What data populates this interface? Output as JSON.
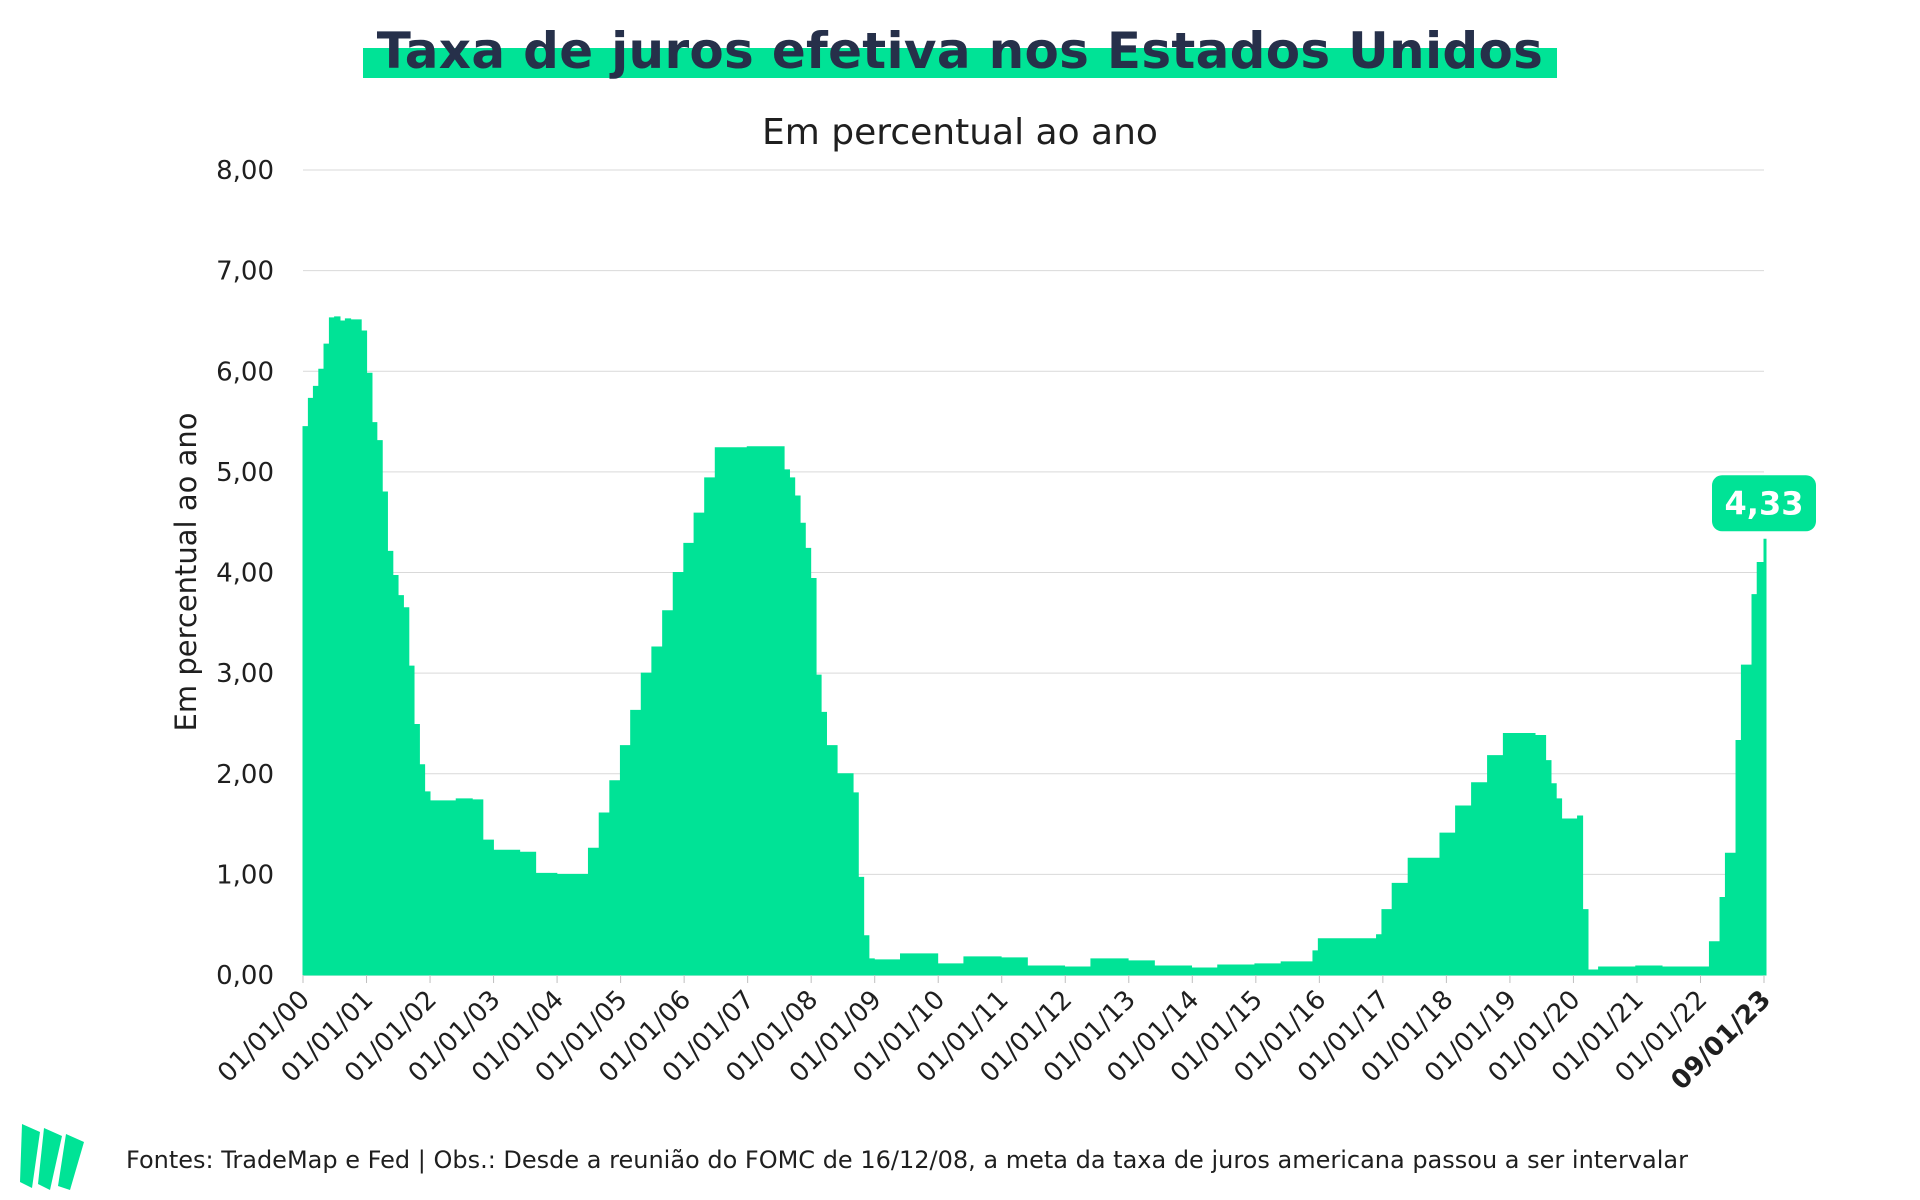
{
  "title": "Taxa de juros efetiva nos Estados Unidos",
  "subtitle": "Em percentual ao ano",
  "footer": "Fontes: TradeMap e Fed | Obs.: Desde a reunião do FOMC de 16/12/08, a meta da taxa de juros americana passou a ser intervalar",
  "colors": {
    "area": "#00e396",
    "title_text": "#26304a",
    "highlight": "#00e396",
    "grid": "#d9d9d9"
  },
  "chart_data": {
    "type": "area",
    "ylabel": "Em percentual ao ano",
    "ylim": [
      0,
      8
    ],
    "yticks": [
      "0,00",
      "1,00",
      "2,00",
      "3,00",
      "4,00",
      "5,00",
      "6,00",
      "7,00",
      "8,00"
    ],
    "xticks": [
      "01/01/00",
      "01/01/01",
      "01/01/02",
      "01/01/03",
      "01/01/04",
      "01/01/05",
      "01/01/06",
      "01/01/07",
      "01/01/08",
      "01/01/09",
      "01/01/10",
      "01/01/11",
      "01/01/12",
      "01/01/13",
      "01/01/14",
      "01/01/15",
      "01/01/16",
      "01/01/17",
      "01/01/18",
      "01/01/19",
      "01/01/20",
      "01/01/21",
      "01/01/22",
      "09/01/23"
    ],
    "grid": true,
    "callout": {
      "label": "4,33",
      "x": "2023-01-09",
      "y": 4.33
    },
    "series": [
      {
        "x": [
          "2000-01-01",
          "2000-02-01",
          "2000-03-01",
          "2000-04-01",
          "2000-05-01",
          "2000-06-01",
          "2000-07-01",
          "2000-08-01",
          "2000-09-01",
          "2000-10-01",
          "2000-11-01",
          "2000-12-01",
          "2001-01-01",
          "2001-02-01",
          "2001-03-01",
          "2001-04-01",
          "2001-05-01",
          "2001-06-01",
          "2001-07-01",
          "2001-08-01",
          "2001-09-01",
          "2001-10-01",
          "2001-11-01",
          "2001-12-01",
          "2002-01-01",
          "2002-03-01",
          "2002-06-01",
          "2002-09-01",
          "2002-11-01",
          "2003-01-01",
          "2003-06-01",
          "2003-09-01",
          "2004-01-01",
          "2004-05-01",
          "2004-07-01",
          "2004-09-01",
          "2004-11-01",
          "2005-01-01",
          "2005-03-01",
          "2005-05-01",
          "2005-07-01",
          "2005-09-01",
          "2005-11-01",
          "2006-01-01",
          "2006-03-01",
          "2006-05-01",
          "2006-07-01",
          "2007-01-01",
          "2007-06-01",
          "2007-08-01",
          "2007-09-01",
          "2007-10-01",
          "2007-11-01",
          "2007-12-01",
          "2008-01-01",
          "2008-02-01",
          "2008-03-01",
          "2008-04-01",
          "2008-06-01",
          "2008-09-01",
          "2008-10-01",
          "2008-11-01",
          "2008-12-01",
          "2009-01-01",
          "2009-06-01",
          "2010-01-01",
          "2010-06-01",
          "2011-01-01",
          "2011-06-01",
          "2012-01-01",
          "2012-06-01",
          "2013-01-01",
          "2013-06-01",
          "2014-01-01",
          "2014-06-01",
          "2015-01-01",
          "2015-06-01",
          "2015-12-01",
          "2016-01-01",
          "2016-12-01",
          "2017-01-01",
          "2017-03-01",
          "2017-06-01",
          "2017-12-01",
          "2018-03-01",
          "2018-06-01",
          "2018-09-01",
          "2018-12-01",
          "2019-06-01",
          "2019-08-01",
          "2019-09-01",
          "2019-10-01",
          "2019-11-01",
          "2020-02-01",
          "2020-03-01",
          "2020-04-01",
          "2020-06-01",
          "2021-01-01",
          "2021-06-01",
          "2022-01-01",
          "2022-03-01",
          "2022-05-01",
          "2022-06-01",
          "2022-08-01",
          "2022-09-01",
          "2022-11-01",
          "2022-12-01",
          "2023-01-09"
        ],
        "values": [
          5.45,
          5.73,
          5.85,
          6.02,
          6.27,
          6.53,
          6.54,
          6.5,
          6.52,
          6.51,
          6.51,
          6.4,
          5.98,
          5.49,
          5.31,
          4.8,
          4.21,
          3.97,
          3.77,
          3.65,
          3.07,
          2.49,
          2.09,
          1.82,
          1.73,
          1.73,
          1.75,
          1.74,
          1.34,
          1.24,
          1.22,
          1.01,
          1.0,
          1.0,
          1.26,
          1.61,
          1.93,
          2.28,
          2.63,
          3.0,
          3.26,
          3.62,
          4.0,
          4.29,
          4.59,
          4.94,
          5.24,
          5.25,
          5.25,
          5.02,
          4.94,
          4.76,
          4.49,
          4.24,
          3.94,
          2.98,
          2.61,
          2.28,
          2.0,
          1.81,
          0.97,
          0.39,
          0.16,
          0.15,
          0.21,
          0.11,
          0.18,
          0.17,
          0.09,
          0.08,
          0.16,
          0.14,
          0.09,
          0.07,
          0.1,
          0.11,
          0.13,
          0.24,
          0.36,
          0.4,
          0.65,
          0.91,
          1.16,
          1.41,
          1.68,
          1.91,
          2.18,
          2.4,
          2.38,
          2.13,
          1.9,
          1.75,
          1.55,
          1.58,
          0.65,
          0.05,
          0.08,
          0.09,
          0.08,
          0.08,
          0.33,
          0.77,
          1.21,
          2.33,
          3.08,
          3.78,
          4.1,
          4.33
        ]
      }
    ]
  }
}
